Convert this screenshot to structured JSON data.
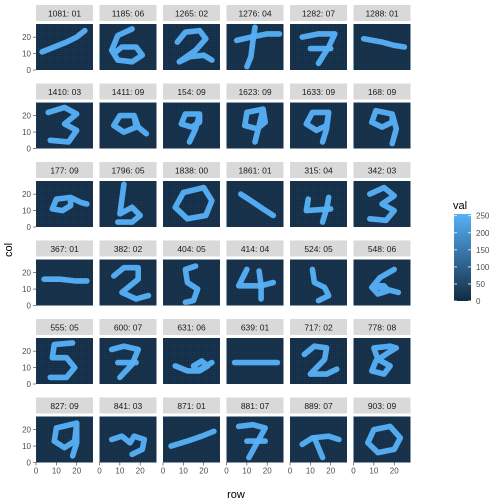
{
  "chart_data": {
    "type": "heatmap",
    "title": "",
    "xlabel": "row",
    "ylabel": "col",
    "x_ticks": [
      "0",
      "10",
      "20"
    ],
    "y_ticks": [
      "0",
      "10",
      "20"
    ],
    "xlim": [
      0,
      28
    ],
    "ylim": [
      0,
      28
    ],
    "legend": {
      "title": "val",
      "ticks": [
        "250",
        "200",
        "150",
        "100",
        "50",
        "0"
      ],
      "range": [
        0,
        255
      ],
      "low_color": "#132B43",
      "high_color": "#56B1F7",
      "placement": "right"
    },
    "panels": [
      {
        "label": "1081: 01",
        "digit": 1,
        "stroke": [
          [
            3,
            11
          ],
          [
            9,
            14
          ],
          [
            15,
            17
          ],
          [
            20,
            20
          ],
          [
            24,
            24
          ]
        ]
      },
      {
        "label": "1185: 06",
        "digit": 6,
        "stroke": [
          [
            16,
            25
          ],
          [
            9,
            21
          ],
          [
            6,
            12
          ],
          [
            9,
            6
          ],
          [
            16,
            5
          ],
          [
            21,
            9
          ],
          [
            18,
            14
          ],
          [
            11,
            14
          ],
          [
            8,
            11
          ]
        ]
      },
      {
        "label": "1265: 02",
        "digit": 2,
        "stroke": [
          [
            7,
            17
          ],
          [
            11,
            23
          ],
          [
            18,
            24
          ],
          [
            21,
            19
          ],
          [
            16,
            12
          ],
          [
            8,
            5
          ],
          [
            13,
            8
          ],
          [
            20,
            9
          ],
          [
            24,
            6
          ]
        ]
      },
      {
        "label": "1276: 04",
        "digit": 4,
        "stroke": [
          [
            5,
            18
          ],
          [
            12,
            20
          ],
          [
            20,
            22
          ],
          [
            26,
            22
          ]
        ],
        "stroke2": [
          [
            14,
            26
          ],
          [
            13,
            18
          ],
          [
            12,
            8
          ],
          [
            10,
            2
          ]
        ]
      },
      {
        "label": "1282: 07",
        "digit": 7,
        "stroke": [
          [
            6,
            20
          ],
          [
            14,
            22
          ],
          [
            22,
            22
          ],
          [
            19,
            14
          ],
          [
            14,
            4
          ]
        ],
        "stroke2": [
          [
            10,
            13
          ],
          [
            20,
            13
          ]
        ]
      },
      {
        "label": "1288: 01",
        "digit": 1,
        "stroke": [
          [
            5,
            19
          ],
          [
            14,
            17
          ],
          [
            20,
            15
          ],
          [
            25,
            14
          ]
        ]
      },
      {
        "label": "1410: 03",
        "digit": 3,
        "stroke": [
          [
            6,
            22
          ],
          [
            14,
            25
          ],
          [
            20,
            21
          ],
          [
            14,
            15
          ],
          [
            20,
            11
          ],
          [
            16,
            4
          ],
          [
            7,
            5
          ]
        ]
      },
      {
        "label": "1411: 09",
        "digit": 9,
        "stroke": [
          [
            17,
            20
          ],
          [
            10,
            20
          ],
          [
            7,
            14
          ],
          [
            12,
            10
          ],
          [
            18,
            13
          ],
          [
            17,
            20
          ],
          [
            19,
            13
          ],
          [
            23,
            9
          ]
        ]
      },
      {
        "label": "154: 09",
        "digit": 9,
        "stroke": [
          [
            18,
            21
          ],
          [
            11,
            21
          ],
          [
            9,
            15
          ],
          [
            14,
            13
          ],
          [
            18,
            16
          ],
          [
            18,
            21
          ],
          [
            16,
            12
          ],
          [
            13,
            4
          ]
        ]
      },
      {
        "label": "1623: 09",
        "digit": 9,
        "stroke": [
          [
            18,
            24
          ],
          [
            10,
            22
          ],
          [
            9,
            14
          ],
          [
            15,
            12
          ],
          [
            19,
            16
          ],
          [
            18,
            24
          ],
          [
            16,
            14
          ],
          [
            14,
            4
          ]
        ]
      },
      {
        "label": "1633: 09",
        "digit": 9,
        "stroke": [
          [
            19,
            22
          ],
          [
            11,
            22
          ],
          [
            8,
            15
          ],
          [
            13,
            11
          ],
          [
            18,
            14
          ],
          [
            19,
            22
          ],
          [
            18,
            12
          ],
          [
            16,
            4
          ]
        ]
      },
      {
        "label": "168: 09",
        "digit": 9,
        "stroke": [
          [
            19,
            21
          ],
          [
            11,
            23
          ],
          [
            9,
            16
          ],
          [
            14,
            13
          ],
          [
            19,
            16
          ],
          [
            19,
            21
          ],
          [
            21,
            12
          ],
          [
            19,
            3
          ]
        ]
      },
      {
        "label": "177: 09",
        "digit": 9,
        "stroke": [
          [
            17,
            18
          ],
          [
            10,
            17
          ],
          [
            8,
            11
          ],
          [
            13,
            10
          ],
          [
            17,
            13
          ],
          [
            17,
            18
          ],
          [
            22,
            15
          ],
          [
            25,
            14
          ]
        ]
      },
      {
        "label": "1796: 05",
        "digit": 5,
        "stroke": [
          [
            12,
            26
          ],
          [
            11,
            17
          ],
          [
            10,
            8
          ],
          [
            16,
            12
          ],
          [
            20,
            7
          ],
          [
            16,
            3
          ],
          [
            9,
            3
          ]
        ]
      },
      {
        "label": "1838: 00",
        "digit": 0,
        "stroke": [
          [
            20,
            24
          ],
          [
            10,
            21
          ],
          [
            6,
            12
          ],
          [
            12,
            5
          ],
          [
            21,
            7
          ],
          [
            24,
            16
          ],
          [
            20,
            24
          ]
        ]
      },
      {
        "label": "1861: 01",
        "digit": 1,
        "stroke": [
          [
            7,
            20
          ],
          [
            12,
            16
          ],
          [
            18,
            11
          ],
          [
            23,
            7
          ]
        ]
      },
      {
        "label": "315: 04",
        "digit": 4,
        "stroke": [
          [
            9,
            17
          ],
          [
            8,
            10
          ],
          [
            20,
            11
          ]
        ],
        "stroke2": [
          [
            19,
            18
          ],
          [
            18,
            11
          ],
          [
            16,
            3
          ]
        ]
      },
      {
        "label": "342: 03",
        "digit": 3,
        "stroke": [
          [
            8,
            20
          ],
          [
            15,
            24
          ],
          [
            20,
            19
          ],
          [
            14,
            14
          ],
          [
            20,
            10
          ],
          [
            16,
            4
          ],
          [
            8,
            5
          ]
        ]
      },
      {
        "label": "367: 01",
        "digit": 1,
        "stroke": [
          [
            4,
            16
          ],
          [
            12,
            16
          ],
          [
            19,
            15
          ],
          [
            25,
            15
          ]
        ]
      },
      {
        "label": "382: 02",
        "digit": 2,
        "stroke": [
          [
            7,
            18
          ],
          [
            12,
            23
          ],
          [
            19,
            23
          ],
          [
            19,
            16
          ],
          [
            11,
            8
          ],
          [
            18,
            4
          ],
          [
            24,
            6
          ]
        ]
      },
      {
        "label": "404: 05",
        "digit": 5,
        "stroke": [
          [
            16,
            24
          ],
          [
            11,
            22
          ],
          [
            12,
            14
          ],
          [
            17,
            10
          ],
          [
            15,
            3
          ],
          [
            11,
            2
          ]
        ]
      },
      {
        "label": "414: 04",
        "digit": 4,
        "stroke": [
          [
            10,
            22
          ],
          [
            6,
            12
          ],
          [
            17,
            12
          ],
          [
            23,
            14
          ]
        ],
        "stroke2": [
          [
            16,
            21
          ],
          [
            17,
            12
          ],
          [
            17,
            4
          ]
        ]
      },
      {
        "label": "524: 05",
        "digit": 5,
        "stroke": [
          [
            11,
            22
          ],
          [
            12,
            14
          ],
          [
            17,
            11
          ],
          [
            19,
            6
          ],
          [
            14,
            3
          ]
        ]
      },
      {
        "label": "548: 06",
        "digit": 6,
        "stroke": [
          [
            20,
            22
          ],
          [
            13,
            17
          ],
          [
            9,
            11
          ],
          [
            12,
            7
          ],
          [
            17,
            9
          ],
          [
            15,
            12
          ],
          [
            10,
            12
          ],
          [
            22,
            8
          ]
        ]
      },
      {
        "label": "555: 05",
        "digit": 5,
        "stroke": [
          [
            18,
            25
          ],
          [
            9,
            24
          ],
          [
            8,
            16
          ],
          [
            15,
            16
          ],
          [
            19,
            10
          ],
          [
            15,
            4
          ],
          [
            7,
            4
          ]
        ]
      },
      {
        "label": "600: 07",
        "digit": 7,
        "stroke": [
          [
            6,
            21
          ],
          [
            12,
            23
          ],
          [
            19,
            21
          ],
          [
            16,
            12
          ],
          [
            10,
            4
          ]
        ],
        "stroke2": [
          [
            9,
            13
          ],
          [
            18,
            13
          ]
        ]
      },
      {
        "label": "631: 06",
        "digit": 6,
        "stroke": [
          [
            6,
            11
          ],
          [
            12,
            8
          ],
          [
            18,
            8
          ],
          [
            22,
            11
          ],
          [
            19,
            14
          ],
          [
            15,
            11
          ],
          [
            17,
            8
          ],
          [
            24,
            13
          ]
        ]
      },
      {
        "label": "639: 01",
        "digit": 1,
        "stroke": [
          [
            4,
            13
          ],
          [
            12,
            13
          ],
          [
            20,
            13
          ],
          [
            25,
            13
          ]
        ]
      },
      {
        "label": "717: 02",
        "digit": 2,
        "stroke": [
          [
            7,
            18
          ],
          [
            12,
            23
          ],
          [
            18,
            22
          ],
          [
            17,
            15
          ],
          [
            10,
            6
          ],
          [
            18,
            6
          ],
          [
            23,
            9
          ]
        ]
      },
      {
        "label": "778: 08",
        "digit": 8,
        "stroke": [
          [
            18,
            23
          ],
          [
            10,
            22
          ],
          [
            12,
            15
          ],
          [
            18,
            11
          ],
          [
            15,
            6
          ],
          [
            9,
            8
          ],
          [
            11,
            14
          ],
          [
            17,
            19
          ],
          [
            21,
            22
          ],
          [
            18,
            23
          ]
        ]
      },
      {
        "label": "827: 09",
        "digit": 9,
        "stroke": [
          [
            20,
            24
          ],
          [
            10,
            21
          ],
          [
            9,
            13
          ],
          [
            14,
            9
          ],
          [
            19,
            13
          ],
          [
            20,
            24
          ],
          [
            20,
            12
          ],
          [
            18,
            4
          ]
        ]
      },
      {
        "label": "841: 03",
        "digit": 3,
        "stroke": [
          [
            6,
            14
          ],
          [
            11,
            16
          ],
          [
            15,
            12
          ],
          [
            17,
            16
          ],
          [
            22,
            14
          ],
          [
            21,
            8
          ],
          [
            16,
            5
          ]
        ]
      },
      {
        "label": "871: 01",
        "digit": 1,
        "stroke": [
          [
            4,
            10
          ],
          [
            12,
            13
          ],
          [
            19,
            16
          ],
          [
            25,
            19
          ]
        ]
      },
      {
        "label": "881: 07",
        "digit": 7,
        "stroke": [
          [
            6,
            22
          ],
          [
            13,
            23
          ],
          [
            19,
            21
          ],
          [
            15,
            12
          ],
          [
            11,
            3
          ]
        ],
        "stroke2": [
          [
            10,
            13
          ],
          [
            19,
            13
          ]
        ]
      },
      {
        "label": "889: 07",
        "digit": 7,
        "stroke": [
          [
            6,
            11
          ],
          [
            11,
            15
          ],
          [
            19,
            16
          ],
          [
            24,
            14
          ]
        ],
        "stroke2": [
          [
            12,
            15
          ],
          [
            14,
            9
          ],
          [
            16,
            3
          ]
        ]
      },
      {
        "label": "903: 09",
        "digit": 9,
        "stroke": [
          [
            18,
            22
          ],
          [
            10,
            20
          ],
          [
            7,
            12
          ],
          [
            12,
            6
          ],
          [
            20,
            8
          ],
          [
            23,
            15
          ],
          [
            18,
            22
          ]
        ]
      }
    ]
  }
}
